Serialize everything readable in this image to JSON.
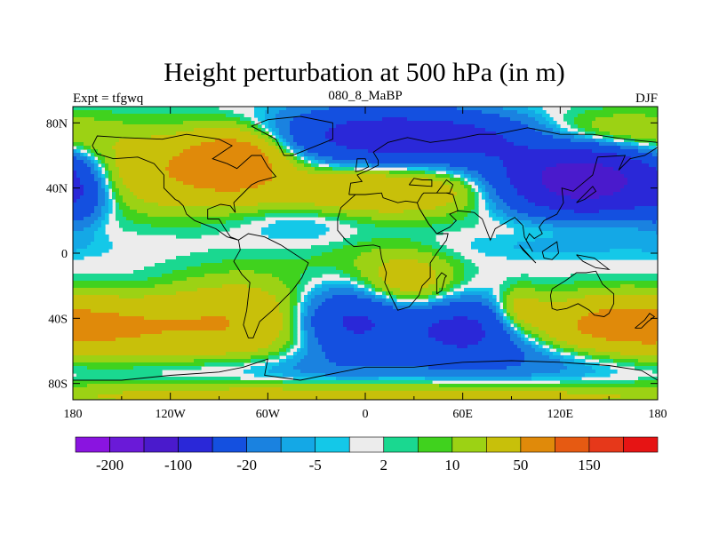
{
  "chart_data": {
    "type": "heatmap",
    "title": "Height perturbation at 500 hPa (in m)",
    "subtitle_left": "Expt = tfgwq",
    "subtitle_center": "080_8_MaBP",
    "subtitle_right": "DJF",
    "x_ticks": [
      "180",
      "120W",
      "60W",
      "0",
      "60E",
      "120E",
      "180"
    ],
    "x_tick_values": [
      -180,
      -120,
      -60,
      0,
      60,
      120,
      180
    ],
    "y_ticks": [
      "80N",
      "40N",
      "0",
      "40S",
      "80S"
    ],
    "y_tick_values": [
      80,
      40,
      0,
      -40,
      -80
    ],
    "xlim": [
      -180,
      180
    ],
    "ylim": [
      -90,
      90
    ],
    "colorbar": {
      "colors": [
        "#8a14e0",
        "#6a1ad8",
        "#4a1acc",
        "#2a28d8",
        "#1450e0",
        "#1a82e0",
        "#14a8e6",
        "#14c8e8",
        "#ececec",
        "#1ad890",
        "#40d21e",
        "#9cd214",
        "#c8c00a",
        "#e08a0a",
        "#e65a12",
        "#e6381a",
        "#e61414"
      ],
      "tick_labels": [
        "-200",
        "-100",
        "-20",
        "-5",
        "2",
        "10",
        "50",
        "150"
      ],
      "tick_boundary_index": [
        1,
        3,
        5,
        7,
        9,
        11,
        13,
        15
      ]
    },
    "field_centers": [
      {
        "lon": -120,
        "lat": 50,
        "amp": 45,
        "slon": 45,
        "slat": 16
      },
      {
        "lon": -80,
        "lat": 58,
        "amp": 70,
        "slon": 20,
        "slat": 12
      },
      {
        "lon": -40,
        "lat": 20,
        "amp": -10,
        "slon": 25,
        "slat": 12
      },
      {
        "lon": 10,
        "lat": 72,
        "amp": -70,
        "slon": 45,
        "slat": 12
      },
      {
        "lon": 10,
        "lat": 38,
        "amp": 45,
        "slon": 50,
        "slat": 10
      },
      {
        "lon": 70,
        "lat": 70,
        "amp": -30,
        "slon": 30,
        "slat": 10
      },
      {
        "lon": 135,
        "lat": 45,
        "amp": -140,
        "slon": 35,
        "slat": 15
      },
      {
        "lon": 150,
        "lat": 72,
        "amp": 30,
        "slon": 35,
        "slat": 10
      },
      {
        "lon": 130,
        "lat": 18,
        "amp": 12,
        "slon": 40,
        "slat": 8
      },
      {
        "lon": -178,
        "lat": 35,
        "amp": -25,
        "slon": 12,
        "slat": 15
      },
      {
        "lon": 120,
        "lat": 5,
        "amp": -6,
        "slon": 60,
        "slat": 6
      },
      {
        "lon": -150,
        "lat": -25,
        "amp": -8,
        "slon": 35,
        "slat": 10
      },
      {
        "lon": -155,
        "lat": -45,
        "amp": 45,
        "slon": 45,
        "slat": 15
      },
      {
        "lon": -75,
        "lat": -42,
        "amp": 40,
        "slon": 35,
        "slat": 18
      },
      {
        "lon": -10,
        "lat": -42,
        "amp": -60,
        "slon": 25,
        "slat": 14
      },
      {
        "lon": 25,
        "lat": -18,
        "amp": 35,
        "slon": 20,
        "slat": 12
      },
      {
        "lon": 60,
        "lat": -46,
        "amp": -60,
        "slon": 25,
        "slat": 12
      },
      {
        "lon": 95,
        "lat": -35,
        "amp": 30,
        "slon": 10,
        "slat": 9
      },
      {
        "lon": 150,
        "lat": -45,
        "amp": 50,
        "slon": 35,
        "slat": 12
      },
      {
        "lon": 100,
        "lat": -65,
        "amp": -20,
        "slon": 60,
        "slat": 10
      },
      {
        "lon": 0,
        "lat": -88,
        "amp": 30,
        "slon": 180,
        "slat": 6
      },
      {
        "lon": -60,
        "lat": -70,
        "amp": -15,
        "slon": 60,
        "slat": 8
      },
      {
        "lon": -10,
        "lat": 0,
        "amp": 7,
        "slon": 35,
        "slat": 10
      }
    ],
    "coastlines": [
      [
        [
          -168,
          66
        ],
        [
          -165,
          72
        ],
        [
          -150,
          71
        ],
        [
          -125,
          70
        ],
        [
          -110,
          73
        ],
        [
          -90,
          70
        ],
        [
          -82,
          66
        ],
        [
          -94,
          58
        ],
        [
          -85,
          55
        ],
        [
          -79,
          52
        ],
        [
          -70,
          60
        ],
        [
          -64,
          60
        ],
        [
          -60,
          53
        ],
        [
          -55,
          47
        ],
        [
          -66,
          44
        ],
        [
          -70,
          42
        ],
        [
          -76,
          36
        ],
        [
          -81,
          31
        ],
        [
          -80,
          25
        ],
        [
          -83,
          29
        ],
        [
          -89,
          30
        ],
        [
          -97,
          27
        ],
        [
          -97,
          21
        ],
        [
          -90,
          21
        ],
        [
          -87,
          16
        ],
        [
          -83,
          10
        ],
        [
          -78,
          8
        ],
        [
          -85,
          10
        ],
        [
          -92,
          15
        ],
        [
          -105,
          20
        ],
        [
          -110,
          24
        ],
        [
          -112,
          29
        ],
        [
          -115,
          32
        ],
        [
          -117,
          33
        ],
        [
          -124,
          40
        ],
        [
          -124,
          48
        ],
        [
          -130,
          55
        ],
        [
          -140,
          59
        ],
        [
          -155,
          58
        ],
        [
          -165,
          61
        ],
        [
          -168,
          66
        ]
      ],
      [
        [
          -78,
          8
        ],
        [
          -72,
          12
        ],
        [
          -62,
          10
        ],
        [
          -52,
          5
        ],
        [
          -35,
          -6
        ],
        [
          -39,
          -15
        ],
        [
          -45,
          -23
        ],
        [
          -57,
          -35
        ],
        [
          -65,
          -42
        ],
        [
          -69,
          -52
        ],
        [
          -72,
          -52
        ],
        [
          -75,
          -44
        ],
        [
          -73,
          -35
        ],
        [
          -71,
          -18
        ],
        [
          -76,
          -13
        ],
        [
          -81,
          -5
        ],
        [
          -77,
          2
        ],
        [
          -78,
          8
        ]
      ],
      [
        [
          -10,
          36
        ],
        [
          -9,
          43
        ],
        [
          -2,
          44
        ],
        [
          -5,
          48
        ],
        [
          2,
          51
        ],
        [
          8,
          54
        ],
        [
          8,
          57
        ],
        [
          5,
          62
        ],
        [
          14,
          68
        ],
        [
          26,
          71
        ],
        [
          40,
          68
        ],
        [
          55,
          70
        ],
        [
          70,
          73
        ],
        [
          80,
          73
        ],
        [
          100,
          77
        ],
        [
          120,
          73
        ],
        [
          140,
          73
        ],
        [
          160,
          70
        ],
        [
          180,
          68
        ]
      ],
      [
        [
          -10,
          36
        ],
        [
          -6,
          36
        ],
        [
          -15,
          28
        ],
        [
          -17,
          21
        ],
        [
          -17,
          14
        ],
        [
          -12,
          8
        ],
        [
          -7,
          4
        ],
        [
          5,
          5
        ],
        [
          9,
          4
        ],
        [
          10,
          -3
        ],
        [
          13,
          -12
        ],
        [
          12,
          -18
        ],
        [
          17,
          -29
        ],
        [
          20,
          -35
        ],
        [
          27,
          -33
        ],
        [
          33,
          -26
        ],
        [
          35,
          -20
        ],
        [
          40,
          -15
        ],
        [
          40,
          -6
        ],
        [
          44,
          0
        ],
        [
          50,
          8
        ],
        [
          51,
          12
        ],
        [
          44,
          12
        ],
        [
          39,
          18
        ],
        [
          33,
          28
        ],
        [
          32,
          31
        ],
        [
          25,
          32
        ],
        [
          20,
          31
        ],
        [
          11,
          34
        ],
        [
          10,
          37
        ],
        [
          0,
          36
        ],
        [
          -6,
          36
        ]
      ],
      [
        [
          32,
          31
        ],
        [
          35,
          36
        ],
        [
          36,
          37
        ],
        [
          44,
          37
        ],
        [
          50,
          37
        ],
        [
          54,
          36
        ],
        [
          57,
          26
        ],
        [
          52,
          24
        ],
        [
          56,
          20
        ],
        [
          52,
          16
        ],
        [
          44,
          12
        ],
        [
          39,
          18
        ],
        [
          33,
          28
        ]
      ],
      [
        [
          180,
          65
        ],
        [
          172,
          60
        ],
        [
          163,
          58
        ],
        [
          156,
          51
        ],
        [
          160,
          60
        ],
        [
          143,
          59
        ],
        [
          140,
          48
        ],
        [
          134,
          43
        ],
        [
          128,
          38
        ],
        [
          121,
          40
        ],
        [
          122,
          31
        ],
        [
          118,
          24
        ],
        [
          110,
          20
        ],
        [
          107,
          16
        ],
        [
          109,
          12
        ],
        [
          104,
          9
        ],
        [
          101,
          12
        ],
        [
          99,
          8
        ],
        [
          103,
          1
        ],
        [
          98,
          10
        ],
        [
          97,
          17
        ],
        [
          92,
          22
        ],
        [
          80,
          15
        ],
        [
          77,
          8
        ],
        [
          72,
          21
        ],
        [
          67,
          25
        ],
        [
          57,
          26
        ]
      ],
      [
        [
          44,
          37
        ],
        [
          50,
          45
        ],
        [
          54,
          42
        ],
        [
          52,
          37
        ],
        [
          50,
          37
        ]
      ],
      [
        [
          27,
          42
        ],
        [
          41,
          41
        ],
        [
          41,
          45
        ],
        [
          35,
          45
        ],
        [
          30,
          46
        ],
        [
          27,
          42
        ]
      ],
      [
        [
          115,
          -22
        ],
        [
          114,
          -26
        ],
        [
          115,
          -34
        ],
        [
          118,
          -35
        ],
        [
          124,
          -34
        ],
        [
          131,
          -31
        ],
        [
          138,
          -35
        ],
        [
          141,
          -38
        ],
        [
          147,
          -39
        ],
        [
          150,
          -37
        ],
        [
          153,
          -31
        ],
        [
          153,
          -25
        ],
        [
          146,
          -19
        ],
        [
          142,
          -11
        ],
        [
          136,
          -12
        ],
        [
          130,
          -12
        ],
        [
          123,
          -17
        ],
        [
          115,
          -22
        ]
      ],
      [
        [
          44,
          -25
        ],
        [
          47,
          -23
        ],
        [
          49,
          -15
        ],
        [
          50,
          -14
        ],
        [
          47,
          -12
        ],
        [
          44,
          -16
        ],
        [
          44,
          -25
        ]
      ],
      [
        [
          -50,
          60
        ],
        [
          -45,
          60
        ],
        [
          -20,
          70
        ],
        [
          -20,
          80
        ],
        [
          -40,
          84
        ],
        [
          -60,
          82
        ],
        [
          -70,
          78
        ],
        [
          -55,
          70
        ],
        [
          -50,
          60
        ]
      ],
      [
        [
          -180,
          -78
        ],
        [
          -150,
          -78
        ],
        [
          -120,
          -75
        ],
        [
          -90,
          -73
        ],
        [
          -75,
          -70
        ],
        [
          -60,
          -65
        ],
        [
          -62,
          -75
        ],
        [
          -40,
          -78
        ],
        [
          0,
          -70
        ],
        [
          30,
          -70
        ],
        [
          60,
          -67
        ],
        [
          90,
          -66
        ],
        [
          120,
          -67
        ],
        [
          150,
          -69
        ],
        [
          170,
          -72
        ],
        [
          180,
          -78
        ]
      ],
      [
        [
          166,
          -46
        ],
        [
          172,
          -41
        ],
        [
          175,
          -37
        ],
        [
          178,
          -39
        ],
        [
          174,
          -42
        ],
        [
          170,
          -46
        ],
        [
          166,
          -46
        ]
      ],
      [
        [
          130,
          -1
        ],
        [
          141,
          -3
        ],
        [
          150,
          -10
        ],
        [
          142,
          -9
        ],
        [
          134,
          -5
        ],
        [
          130,
          -1
        ]
      ],
      [
        [
          95,
          5
        ],
        [
          105,
          -6
        ],
        [
          103,
          -4
        ],
        [
          97,
          2
        ],
        [
          95,
          5
        ]
      ],
      [
        [
          109,
          1
        ],
        [
          118,
          7
        ],
        [
          119,
          0
        ],
        [
          115,
          -4
        ],
        [
          110,
          -3
        ],
        [
          109,
          1
        ]
      ],
      [
        [
          130,
          31
        ],
        [
          133,
          34
        ],
        [
          140,
          41
        ],
        [
          142,
          38
        ],
        [
          135,
          33
        ],
        [
          130,
          31
        ]
      ],
      [
        [
          -6,
          50
        ],
        [
          -2,
          51
        ],
        [
          2,
          53
        ],
        [
          0,
          58
        ],
        [
          -5,
          58
        ],
        [
          -6,
          50
        ]
      ]
    ]
  }
}
